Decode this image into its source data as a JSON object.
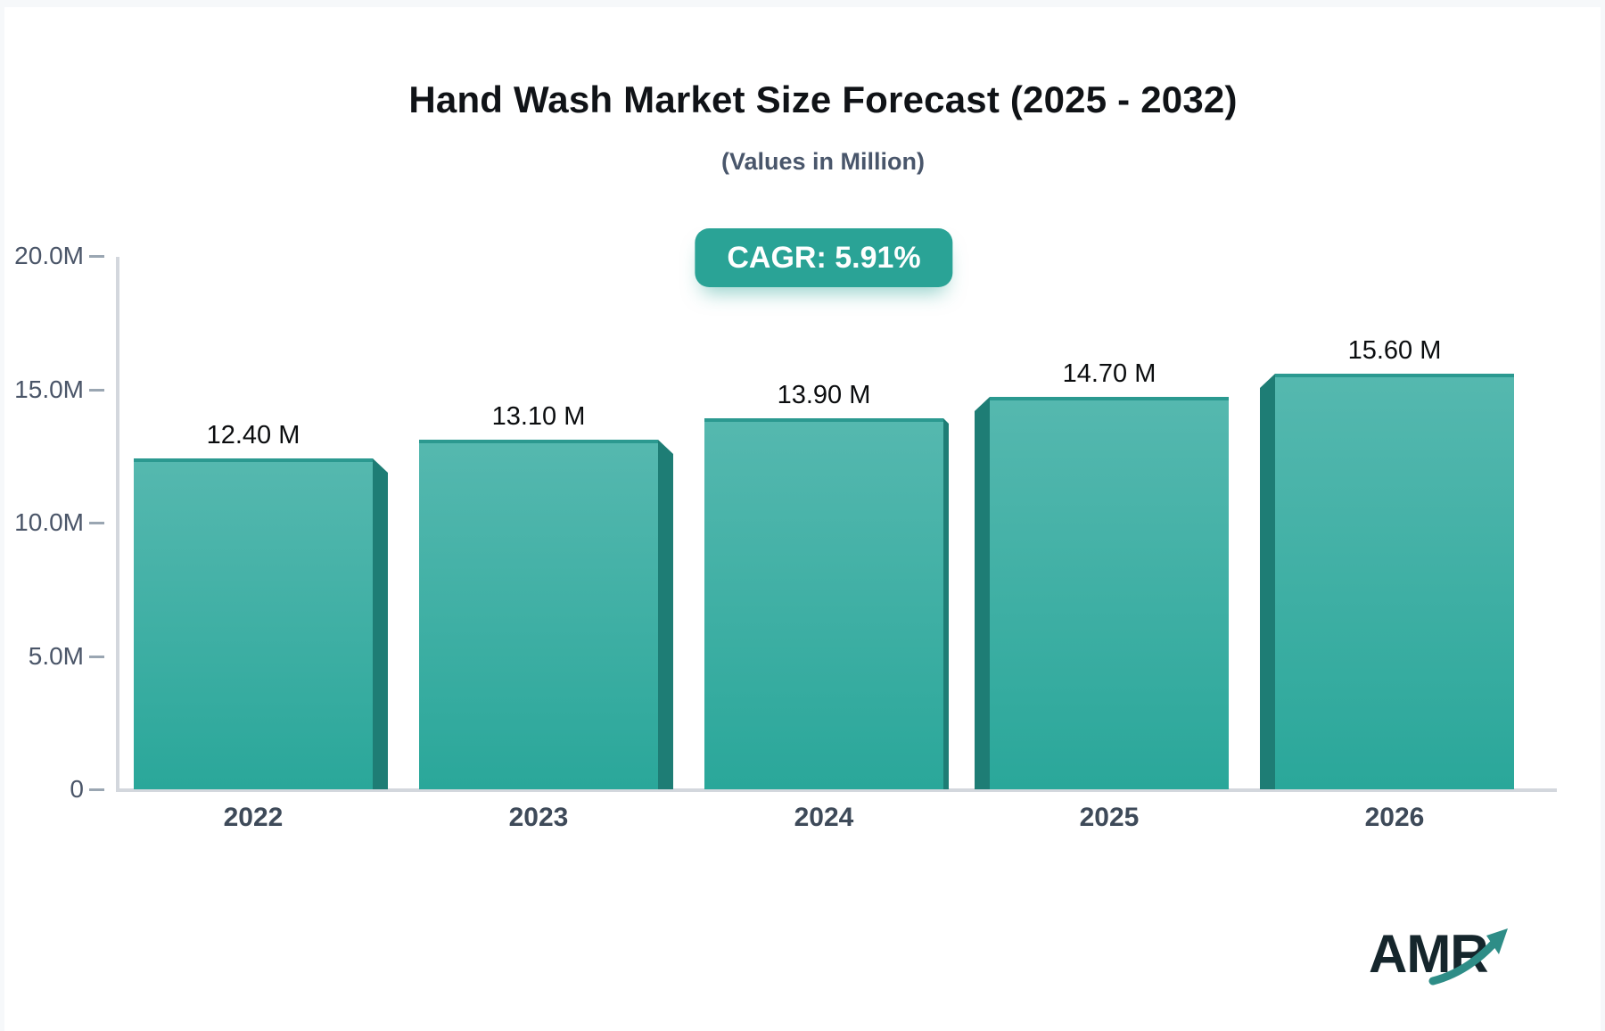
{
  "header": {
    "title": "Hand Wash Market Size Forecast (2025 - 2032)",
    "subtitle": "(Values in Million)",
    "cagr_label": "CAGR: 5.91%"
  },
  "chart_data": {
    "type": "bar",
    "title": "Hand Wash Market Size Forecast (2025 - 2032)",
    "subtitle": "(Values in Million)",
    "cagr_pct": 5.91,
    "categories": [
      "2022",
      "2023",
      "2024",
      "2025",
      "2026"
    ],
    "values": [
      12.4,
      13.1,
      13.9,
      14.7,
      15.6
    ],
    "value_labels": [
      "12.40 M",
      "13.10 M",
      "13.90 M",
      "14.70 M",
      "15.60 M"
    ],
    "unit": "Million",
    "xlabel": "",
    "ylabel": "",
    "ylim": [
      0,
      20
    ],
    "yticks": [
      {
        "value": 0,
        "label": "0"
      },
      {
        "value": 5,
        "label": "5.0M"
      },
      {
        "value": 10,
        "label": "10.0M"
      },
      {
        "value": 15,
        "label": "15.0M"
      },
      {
        "value": 20,
        "label": "20.0M"
      }
    ],
    "grid": false,
    "legend": "none",
    "bar_style": "3d-extruded"
  },
  "colors": {
    "bar_top": "#55b8af",
    "bar_bottom": "#2aa79a",
    "bar_top_edge": "#2b9990",
    "bar_side": "#1e7d75",
    "badge_bg": "#2aa396",
    "badge_text": "#ffffff",
    "axis_line": "#d3d7dd",
    "axis_text": "#4a5568",
    "title_text": "#101317",
    "subtitle_text": "#49566b",
    "logo_text": "#15262c",
    "logo_arrow": "#2e8d87",
    "background": "#ffffff"
  },
  "logo": {
    "text": "AMR"
  }
}
